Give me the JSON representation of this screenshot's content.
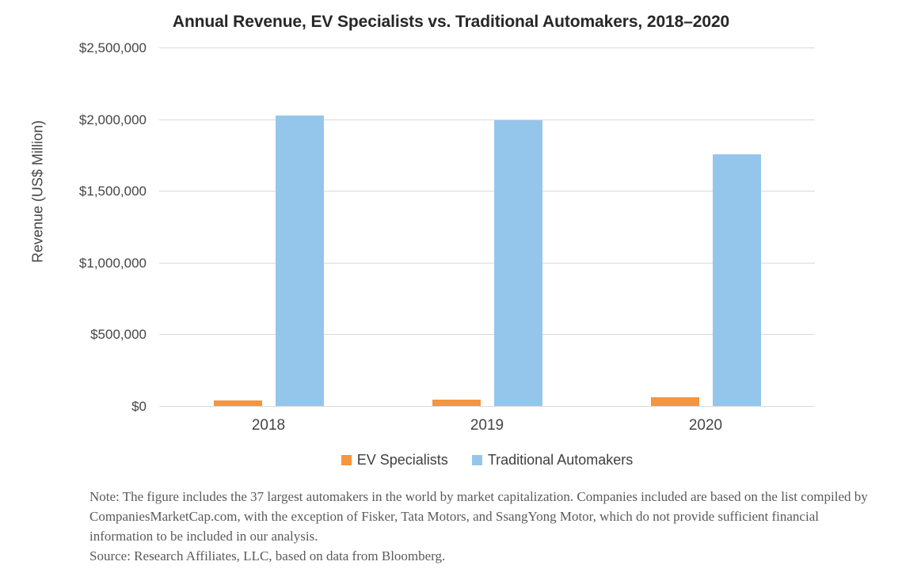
{
  "chart_data": {
    "type": "bar",
    "title": "Annual Revenue, EV Specialists vs. Traditional Automakers, 2018–2020",
    "xlabel": "",
    "ylabel": "Revenue (US$ Million)",
    "ylim": [
      0,
      2500000
    ],
    "grid": true,
    "legend_position": "bottom",
    "categories": [
      "2018",
      "2019",
      "2020"
    ],
    "series": [
      {
        "name": "EV Specialists",
        "color": "#f6953e",
        "values": [
          41000,
          44000,
          58000
        ]
      },
      {
        "name": "Traditional Automakers",
        "color": "#94c6ec",
        "values": [
          2027000,
          1992000,
          1756000
        ]
      }
    ],
    "yticks": [
      {
        "value": 0,
        "label": "$0"
      },
      {
        "value": 500000,
        "label": "$500,000"
      },
      {
        "value": 1000000,
        "label": "$1,000,000"
      },
      {
        "value": 1500000,
        "label": "$1,500,000"
      },
      {
        "value": 2000000,
        "label": "$2,000,000"
      },
      {
        "value": 2500000,
        "label": "$2,500,000"
      }
    ]
  },
  "note": {
    "lines": [
      "Note: The figure includes the 37 largest automakers in the world by market capitalization. Companies included are based on the list compiled by",
      "CompaniesMarketCap.com, with the exception of Fisker, Tata Motors, and SsangYong Motor, which do not provide sufficient financial",
      "information to be included in our analysis.",
      "Source: Research Affiliates, LLC, based on data from Bloomberg."
    ]
  },
  "colors": {
    "grid": "#d9d9d9",
    "title_text": "#272727",
    "tick_text": "#454545",
    "note_text": "#5a5a5a",
    "ev_orange": "#f6953e",
    "traditional_blue": "#94c6ec"
  }
}
